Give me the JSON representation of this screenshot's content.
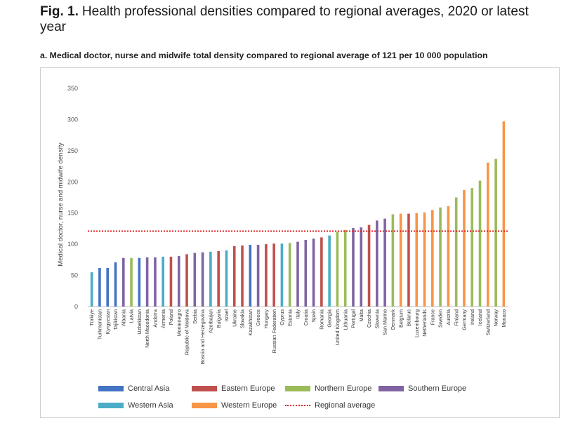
{
  "figure": {
    "number": "Fig. 1.",
    "title": "Health professional densities compared to regional averages, 2020 or latest year",
    "subtitle": "a. Medical doctor, nurse and midwife total density compared to regional average of 121 per 10 000 population"
  },
  "chart_data": {
    "type": "bar",
    "ylabel": "Medical doctor, nurse and midwife density",
    "ylim": [
      0,
      350
    ],
    "yticks": [
      0,
      50,
      100,
      150,
      200,
      250,
      300,
      350
    ],
    "grid": false,
    "legend_position": "bottom",
    "reference_line": {
      "label": "Regional average",
      "value": 121,
      "color": "#e02020"
    },
    "groups": [
      {
        "name": "Central Asia",
        "color": "#4472c4"
      },
      {
        "name": "Eastern Europe",
        "color": "#c0504d"
      },
      {
        "name": "Northern Europe",
        "color": "#9bbb59"
      },
      {
        "name": "Southern Europe",
        "color": "#8064a2"
      },
      {
        "name": "Western Asia",
        "color": "#4bacc6"
      },
      {
        "name": "Western Europe",
        "color": "#f79646"
      }
    ],
    "categories": [
      "Türkiye",
      "Turkmenistan",
      "Kyrgyzstan",
      "Tajikistan",
      "Albania",
      "Latvia",
      "Uzbekistan",
      "North Macedonia",
      "Andorra",
      "Armenia",
      "Poland",
      "Montenegro",
      "Republic of Moldova",
      "Serbia",
      "Bosnia and Herzegovina",
      "Azerbaijan",
      "Bulgaria",
      "Israel",
      "Ukraine",
      "Slovakia",
      "Kazakhstan",
      "Greece",
      "Hungary",
      "Russian Federation",
      "Cyprus",
      "Estonia",
      "Italy",
      "Croatia",
      "Spain",
      "Romania",
      "Georgia",
      "United Kingdom",
      "Lithuania",
      "Portugal",
      "Malta",
      "Czechia",
      "Slovenia",
      "San Marino",
      "Denmark",
      "Belgium",
      "Belarus",
      "Luxembourg",
      "Netherlands",
      "France",
      "Sweden",
      "Austria",
      "Finland",
      "Germany",
      "Ireland",
      "Iceland",
      "Switzerland",
      "Norway",
      "Monaco"
    ],
    "values": [
      55,
      62,
      62,
      71,
      78,
      78,
      78,
      79,
      79,
      80,
      80,
      81,
      84,
      86,
      87,
      88,
      89,
      90,
      97,
      98,
      99,
      99,
      100,
      101,
      101,
      102,
      104,
      107,
      109,
      111,
      114,
      120,
      123,
      126,
      127,
      131,
      138,
      141,
      148,
      149,
      149,
      150,
      151,
      155,
      159,
      161,
      175,
      187,
      190,
      202,
      231,
      237,
      297
    ],
    "region": [
      "Western Asia",
      "Central Asia",
      "Central Asia",
      "Central Asia",
      "Southern Europe",
      "Northern Europe",
      "Central Asia",
      "Southern Europe",
      "Southern Europe",
      "Western Asia",
      "Eastern Europe",
      "Southern Europe",
      "Eastern Europe",
      "Southern Europe",
      "Southern Europe",
      "Western Asia",
      "Eastern Europe",
      "Western Asia",
      "Eastern Europe",
      "Eastern Europe",
      "Central Asia",
      "Southern Europe",
      "Eastern Europe",
      "Eastern Europe",
      "Western Asia",
      "Northern Europe",
      "Southern Europe",
      "Southern Europe",
      "Southern Europe",
      "Eastern Europe",
      "Western Asia",
      "Northern Europe",
      "Northern Europe",
      "Southern Europe",
      "Southern Europe",
      "Eastern Europe",
      "Southern Europe",
      "Southern Europe",
      "Northern Europe",
      "Western Europe",
      "Eastern Europe",
      "Western Europe",
      "Western Europe",
      "Western Europe",
      "Northern Europe",
      "Western Europe",
      "Northern Europe",
      "Western Europe",
      "Northern Europe",
      "Northern Europe",
      "Western Europe",
      "Northern Europe",
      "Western Europe"
    ]
  }
}
